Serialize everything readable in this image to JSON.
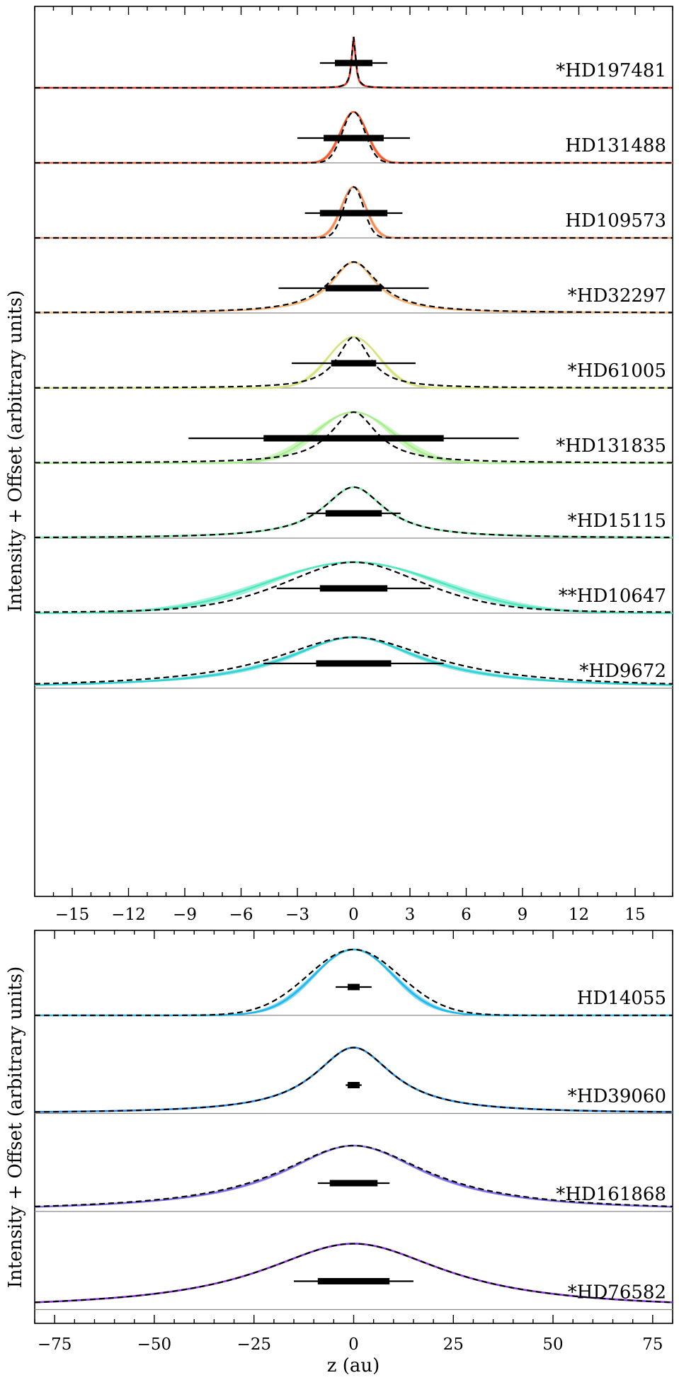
{
  "chart_data": [
    {
      "type": "line",
      "panel": "top",
      "xlabel": "",
      "ylabel": "Intensity + Offset (arbitrary units)",
      "xlim": [
        -17,
        17
      ],
      "xticks": [
        -15,
        -12,
        -9,
        -6,
        -3,
        0,
        3,
        6,
        9,
        12,
        15
      ],
      "xtick_labels": [
        "−15",
        "−12",
        "−9",
        "−6",
        "−3",
        "0",
        "3",
        "6",
        "9",
        "12",
        "15"
      ],
      "series": [
        {
          "name": "*HD197481",
          "color": "#e8331c",
          "model_scale": 0.12,
          "model_shape": "lorentzian",
          "fit_scale": 0.13,
          "fit_shape": "lorentzian",
          "band": 0.02,
          "inner_bar": [
            -1,
            1
          ],
          "outer_bar": [
            -1.8,
            1.8
          ]
        },
        {
          "name": "HD131488",
          "color": "#f4582a",
          "model_scale": 0.7,
          "model_shape": "gaussian",
          "fit_scale": 0.6,
          "fit_shape": "gaussian",
          "band": 0.06,
          "inner_bar": [
            -1.6,
            1.6
          ],
          "outer_bar": [
            -3.0,
            3.0
          ]
        },
        {
          "name": "HD109573",
          "color": "#f78a52",
          "model_scale": 0.65,
          "model_shape": "gaussian",
          "fit_scale": 0.52,
          "fit_shape": "gaussian",
          "band": 0.06,
          "inner_bar": [
            -1.8,
            1.8
          ],
          "outer_bar": [
            -2.6,
            2.6
          ]
        },
        {
          "name": "*HD32297",
          "color": "#fbb676",
          "model_scale": 1.45,
          "model_shape": "lorentzian",
          "fit_scale": 1.6,
          "fit_shape": "lorentzian",
          "band": 0.08,
          "inner_bar": [
            -1.5,
            1.5
          ],
          "outer_bar": [
            -4.0,
            4.0
          ]
        },
        {
          "name": "*HD61005",
          "color": "#d8e27a",
          "model_scale": 1.35,
          "model_shape": "gaussian",
          "fit_scale": 1.05,
          "fit_shape": "lorentzian",
          "band": 0.08,
          "inner_bar": [
            -1.2,
            1.2
          ],
          "outer_bar": [
            -3.3,
            3.3
          ]
        },
        {
          "name": "*HD131835",
          "color": "#a8ee8e",
          "model_scale": 2.05,
          "model_shape": "gaussian",
          "fit_scale": 1.5,
          "fit_shape": "lorentzian",
          "band": 0.25,
          "inner_bar": [
            -4.8,
            4.8
          ],
          "outer_bar": [
            -8.8,
            8.8
          ]
        },
        {
          "name": "*HD15115",
          "color": "#7ef2a9",
          "model_scale": 2.0,
          "model_shape": "lorentzian",
          "fit_scale": 2.0,
          "fit_shape": "lorentzian",
          "band": 0.1,
          "inner_bar": [
            -1.5,
            1.5
          ],
          "outer_bar": [
            -2.5,
            2.5
          ]
        },
        {
          "name": "**HD10647",
          "color": "#4fe7be",
          "model_scale": 4.6,
          "model_shape": "gaussian",
          "fit_scale": 3.9,
          "fit_shape": "gauss_lorentz",
          "band": 0.4,
          "inner_bar": [
            -1.8,
            1.8
          ],
          "outer_bar": [
            -4.1,
            4.1
          ]
        },
        {
          "name": "*HD9672",
          "color": "#2fd2d2",
          "model_scale": 4.4,
          "model_shape": "lorentzian",
          "fit_scale": 5.2,
          "fit_shape": "lorentzian",
          "band": 0.4,
          "inner_bar": [
            -2.0,
            2.0
          ],
          "outer_bar": [
            -4.8,
            4.8
          ]
        }
      ]
    },
    {
      "type": "line",
      "panel": "bottom",
      "xlabel": "z (au)",
      "ylabel": "Intensity + Offset (arbitrary units)",
      "xlim": [
        -80,
        80
      ],
      "xticks": [
        -75,
        -50,
        -25,
        0,
        25,
        50,
        75
      ],
      "xtick_labels": [
        "−75",
        "−50",
        "−25",
        "0",
        "25",
        "50",
        "75"
      ],
      "series": [
        {
          "name": "HD14055",
          "color": "#1fb8ea",
          "model_scale": 10.0,
          "model_shape": "gaussian",
          "fit_scale": 11.5,
          "fit_shape": "gaussian",
          "band": 0.6,
          "inner_bar": [
            -1.5,
            1.5
          ],
          "outer_bar": [
            -4.5,
            4.5
          ]
        },
        {
          "name": "*HD39060",
          "color": "#1f86e6",
          "model_scale": 12.0,
          "model_shape": "lorentzian",
          "fit_scale": 12.0,
          "fit_shape": "lorentzian",
          "band": 0.3,
          "inner_bar": [
            -1.5,
            1.5
          ],
          "outer_bar": [
            -2.0,
            2.0
          ]
        },
        {
          "name": "*HD161868",
          "color": "#7b6ee8",
          "model_scale": 22.0,
          "model_shape": "lorentzian",
          "fit_scale": 23.0,
          "fit_shape": "lorentzian",
          "band": 1.0,
          "inner_bar": [
            -6.0,
            6.0
          ],
          "outer_bar": [
            -9.0,
            9.0
          ]
        },
        {
          "name": "*HD76582",
          "color": "#8a2be2",
          "model_scale": 28.0,
          "model_shape": "lorentzian",
          "fit_scale": 28.0,
          "fit_shape": "lorentzian",
          "band": 0.6,
          "inner_bar": [
            -9.0,
            9.0
          ],
          "outer_bar": [
            -15.0,
            15.0
          ]
        }
      ]
    }
  ]
}
